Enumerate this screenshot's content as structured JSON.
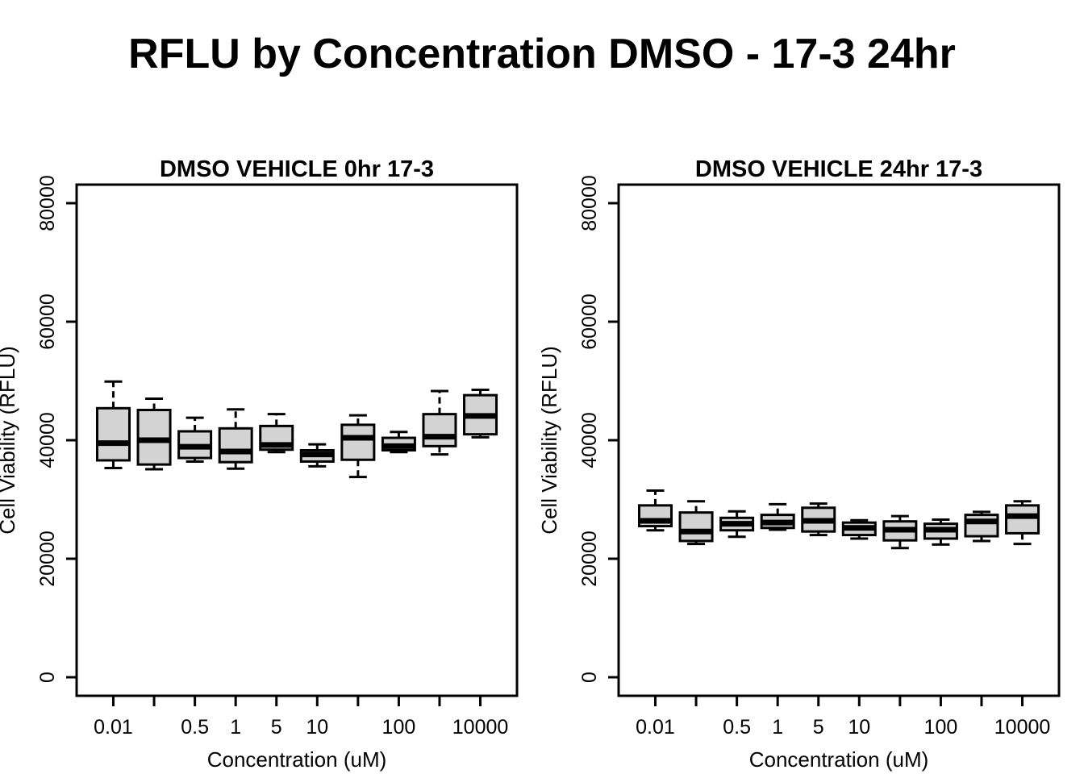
{
  "title": "RFLU by Concentration DMSO - 17-3 24hr",
  "colors": {
    "background": "#ffffff",
    "box_fill": "#d3d3d3",
    "box_border": "#000000",
    "text": "#000000"
  },
  "chart_data": [
    {
      "type": "boxplot",
      "title": "DMSO VEHICLE 0hr 17-3",
      "xlabel": "Concentration (uM)",
      "ylabel": "Cell Viability (RFLU)",
      "ylim": [
        0,
        80000
      ],
      "yticks": [
        0,
        20000,
        40000,
        60000,
        80000
      ],
      "ytick_labels": [
        "0",
        "20000",
        "40000",
        "60000",
        "80000"
      ],
      "categories": [
        "0.01",
        "",
        "0.5",
        "1",
        "5",
        "10",
        "",
        "100",
        "",
        "10000"
      ],
      "grid": false,
      "whisker_style": "dashed",
      "boxes": [
        {
          "label": "0.01",
          "low": 35300,
          "q1": 36600,
          "median": 39500,
          "q3": 45400,
          "high": 49900
        },
        {
          "label": "",
          "low": 35100,
          "q1": 35900,
          "median": 40000,
          "q3": 45100,
          "high": 47000
        },
        {
          "label": "0.5",
          "low": 36400,
          "q1": 37000,
          "median": 38900,
          "q3": 41500,
          "high": 43800
        },
        {
          "label": "1",
          "low": 35200,
          "q1": 36300,
          "median": 38100,
          "q3": 42000,
          "high": 45200
        },
        {
          "label": "5",
          "low": 38000,
          "q1": 38400,
          "median": 39200,
          "q3": 42400,
          "high": 44400
        },
        {
          "label": "10",
          "low": 35600,
          "q1": 36400,
          "median": 37600,
          "q3": 38300,
          "high": 39300
        },
        {
          "label": "",
          "low": 33800,
          "q1": 36700,
          "median": 40400,
          "q3": 42600,
          "high": 44200
        },
        {
          "label": "100",
          "low": 38000,
          "q1": 38300,
          "median": 39000,
          "q3": 40400,
          "high": 41400
        },
        {
          "label": "",
          "low": 37600,
          "q1": 39000,
          "median": 40600,
          "q3": 44400,
          "high": 48300
        },
        {
          "label": "10000",
          "low": 40500,
          "q1": 41000,
          "median": 44100,
          "q3": 47600,
          "high": 48500
        }
      ]
    },
    {
      "type": "boxplot",
      "title": "DMSO VEHICLE 24hr 17-3",
      "xlabel": "Concentration (uM)",
      "ylabel": "Cell Viability (RFLU)",
      "ylim": [
        0,
        80000
      ],
      "yticks": [
        0,
        20000,
        40000,
        60000,
        80000
      ],
      "ytick_labels": [
        "0",
        "20000",
        "40000",
        "60000",
        "80000"
      ],
      "categories": [
        "0.01",
        "",
        "0.5",
        "1",
        "5",
        "10",
        "",
        "100",
        "",
        "10000"
      ],
      "grid": false,
      "whisker_style": "dashed",
      "boxes": [
        {
          "label": "0.01",
          "low": 24800,
          "q1": 25500,
          "median": 26400,
          "q3": 29000,
          "high": 31500
        },
        {
          "label": "",
          "low": 22500,
          "q1": 23000,
          "median": 24600,
          "q3": 27800,
          "high": 29700
        },
        {
          "label": "0.5",
          "low": 23700,
          "q1": 24800,
          "median": 25900,
          "q3": 26900,
          "high": 28000
        },
        {
          "label": "1",
          "low": 24900,
          "q1": 25200,
          "median": 26100,
          "q3": 27400,
          "high": 29200
        },
        {
          "label": "5",
          "low": 24000,
          "q1": 24600,
          "median": 26400,
          "q3": 28600,
          "high": 29300
        },
        {
          "label": "10",
          "low": 23400,
          "q1": 24000,
          "median": 25200,
          "q3": 26100,
          "high": 26500
        },
        {
          "label": "",
          "low": 21800,
          "q1": 23100,
          "median": 24900,
          "q3": 26300,
          "high": 27200
        },
        {
          "label": "100",
          "low": 22400,
          "q1": 23400,
          "median": 24900,
          "q3": 25900,
          "high": 26600
        },
        {
          "label": "",
          "low": 23000,
          "q1": 23800,
          "median": 26300,
          "q3": 27400,
          "high": 27900
        },
        {
          "label": "10000",
          "low": 22500,
          "q1": 24300,
          "median": 27200,
          "q3": 29000,
          "high": 29700
        }
      ]
    }
  ]
}
